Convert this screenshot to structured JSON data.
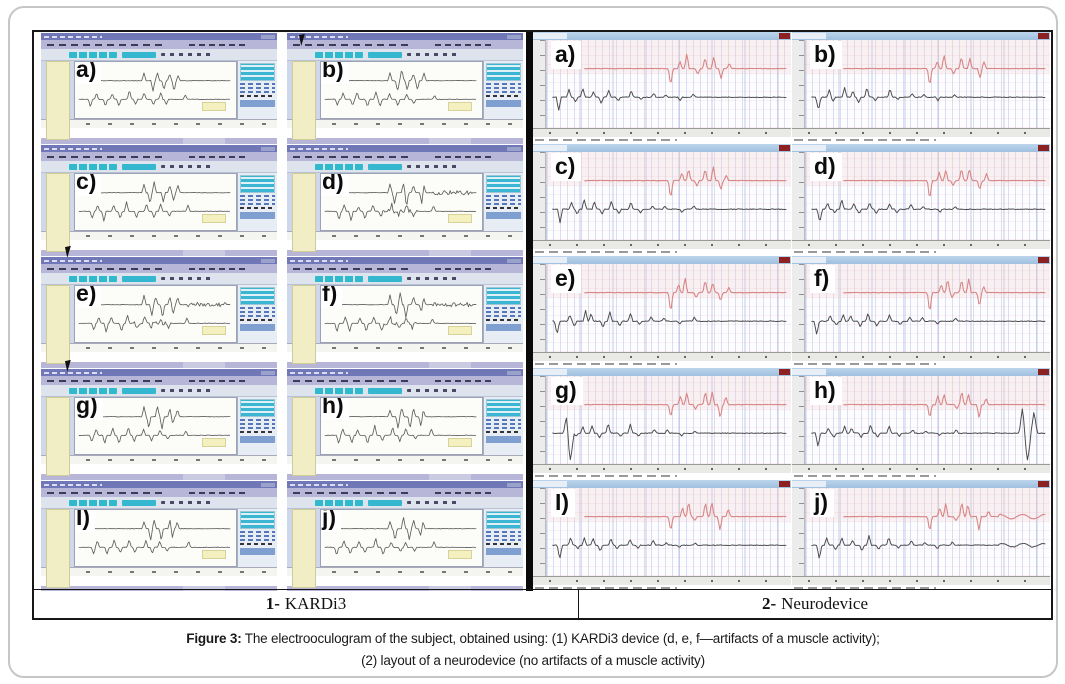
{
  "figure": {
    "caption_prefix": "Figure 3:",
    "caption_line1_rest": " The electrooculogram of the subject, obtained using: (1) KARDi3 device (d, e, f—artifacts of a muscle activity);",
    "caption_line2": "(2) layout of a neurodevice (no artifacts of a muscle activity)"
  },
  "footer": {
    "left": {
      "number": "1-",
      "name": "KARDi3"
    },
    "right": {
      "number": "2-",
      "name": "Neurodevice"
    }
  },
  "colors": {
    "kardi_trace": "#5f5f5f",
    "neuro_red_trace": "#d88484",
    "neuro_black_trace": "#4a4a4a",
    "kardi_titlebar": "#6f77b6",
    "kardi_menubar": "#b7b6d8",
    "kardi_teal": "#2fb9cd",
    "kardi_yellow_panel": "#f1eec5",
    "neuro_titlebar": "#aac8e4",
    "neuro_close_button": "#8d2020",
    "divider_black": "#0a0a0a"
  },
  "kardi3_panels": [
    {
      "label": "a)",
      "seed": 101,
      "artifact": false
    },
    {
      "label": "b)",
      "seed": 102,
      "artifact": false
    },
    {
      "label": "c)",
      "seed": 103,
      "artifact": false
    },
    {
      "label": "d)",
      "seed": 104,
      "artifact": true
    },
    {
      "label": "e)",
      "seed": 105,
      "artifact": true
    },
    {
      "label": "f)",
      "seed": 106,
      "artifact": true
    },
    {
      "label": "g)",
      "seed": 107,
      "artifact": false
    },
    {
      "label": "h)",
      "seed": 108,
      "artifact": false
    },
    {
      "label": "I)",
      "seed": 109,
      "artifact": false
    },
    {
      "label": "j)",
      "seed": 110,
      "artifact": false
    }
  ],
  "neuro_panels": [
    {
      "label": "a)",
      "seed": 201,
      "features": []
    },
    {
      "label": "b)",
      "seed": 202,
      "features": []
    },
    {
      "label": "c)",
      "seed": 203,
      "features": []
    },
    {
      "label": "d)",
      "seed": 204,
      "features": []
    },
    {
      "label": "e)",
      "seed": 205,
      "features": []
    },
    {
      "label": "f)",
      "seed": 206,
      "features": []
    },
    {
      "label": "g)",
      "seed": 207,
      "features": [
        "big-left-spike"
      ]
    },
    {
      "label": "h)",
      "seed": 208,
      "features": [
        "big-right-spike"
      ]
    },
    {
      "label": "I)",
      "seed": 209,
      "features": []
    },
    {
      "label": "j)",
      "seed": 210,
      "features": [
        "wavy-tail"
      ]
    }
  ]
}
